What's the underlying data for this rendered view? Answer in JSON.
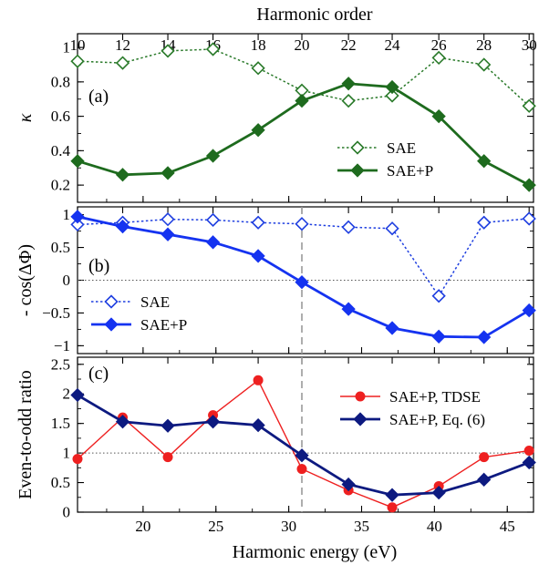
{
  "figure": {
    "top_xlabel": "Harmonic order",
    "bottom_xlabel": "Harmonic energy (eV)",
    "top_ticks": [
      10,
      12,
      14,
      16,
      18,
      20,
      22,
      24,
      26,
      28,
      30
    ],
    "bottom_ticks": [
      20,
      25,
      30,
      35,
      40,
      45
    ],
    "xlim": [
      15.5,
      46.8
    ],
    "vline_x": 30.9
  },
  "chart_data": [
    {
      "type": "line",
      "panel_label": "(a)",
      "ylabel": "κ",
      "ylim": [
        0.1,
        1.08
      ],
      "yticks": [
        0.2,
        0.4,
        0.6,
        0.8,
        1
      ],
      "ytick_labels": [
        "0.2",
        "0.4",
        "0.6",
        "0.8",
        "1"
      ],
      "legend_position": "center-right",
      "x": [
        15.5,
        18.6,
        21.7,
        24.8,
        27.9,
        30.9,
        34.1,
        37.1,
        40.3,
        43.4,
        46.5
      ],
      "series": [
        {
          "name": "SAE",
          "color": "#2a7a2a",
          "style": "dotted",
          "marker": "open-diamond",
          "values": [
            0.92,
            0.91,
            0.98,
            0.99,
            0.88,
            0.75,
            0.69,
            0.72,
            0.94,
            0.9,
            0.66
          ]
        },
        {
          "name": "SAE+P",
          "color": "#1e6b1e",
          "style": "solid",
          "marker": "filled-diamond",
          "values": [
            0.34,
            0.26,
            0.27,
            0.37,
            0.52,
            0.69,
            0.79,
            0.77,
            0.6,
            0.34,
            0.2
          ]
        }
      ]
    },
    {
      "type": "line",
      "panel_label": "(b)",
      "ylabel": "- cos(ΔΦ)",
      "ylim": [
        -1.12,
        1.12
      ],
      "yticks": [
        -1,
        -0.5,
        0,
        0.5,
        1
      ],
      "ytick_labels": [
        "−1",
        "−0.5",
        "0",
        "0.5",
        "1"
      ],
      "hline_y": 0,
      "legend_position": "lower-left",
      "x": [
        15.5,
        18.6,
        21.7,
        24.8,
        27.9,
        30.9,
        34.1,
        37.1,
        40.3,
        43.4,
        46.5
      ],
      "series": [
        {
          "name": "SAE",
          "color": "#1f3fe0",
          "style": "dotted",
          "marker": "open-diamond",
          "values": [
            0.85,
            0.88,
            0.93,
            0.92,
            0.88,
            0.86,
            0.81,
            0.79,
            -0.24,
            0.88,
            0.94
          ]
        },
        {
          "name": "SAE+P",
          "color": "#1533f0",
          "style": "solid",
          "marker": "filled-diamond",
          "values": [
            0.97,
            0.82,
            0.7,
            0.58,
            0.37,
            -0.03,
            -0.44,
            -0.73,
            -0.86,
            -0.87,
            -0.46
          ]
        }
      ]
    },
    {
      "type": "line",
      "panel_label": "(c)",
      "ylabel": "Even-to-odd ratio",
      "ylim": [
        0,
        2.62
      ],
      "yticks": [
        0,
        0.5,
        1,
        1.5,
        2,
        2.5
      ],
      "ytick_labels": [
        "0",
        "0.5",
        "1",
        "1.5",
        "2",
        "2.5"
      ],
      "hline_y": 1,
      "legend_position": "top-right",
      "series": [
        {
          "name": "SAE+P, TDSE",
          "color": "#ee2020",
          "style": "solid-thin",
          "marker": "filled-circle",
          "x": [
            15.5,
            18.6,
            21.7,
            24.8,
            27.9,
            30.9,
            34.1,
            37.1,
            40.3,
            43.4,
            46.5
          ],
          "values": [
            0.9,
            1.6,
            0.93,
            1.64,
            2.23,
            0.73,
            0.37,
            0.08,
            0.44,
            0.93,
            1.04
          ]
        },
        {
          "name": "SAE+P, Eq. (6)",
          "color": "#0d1a80",
          "style": "solid",
          "marker": "filled-diamond",
          "x": [
            15.5,
            18.6,
            21.7,
            24.8,
            27.9,
            30.9,
            34.1,
            37.1,
            40.3,
            43.4,
            46.5
          ],
          "values": [
            1.98,
            1.53,
            1.46,
            1.53,
            1.47,
            0.96,
            0.47,
            0.29,
            0.33,
            0.55,
            0.84
          ]
        }
      ]
    }
  ]
}
